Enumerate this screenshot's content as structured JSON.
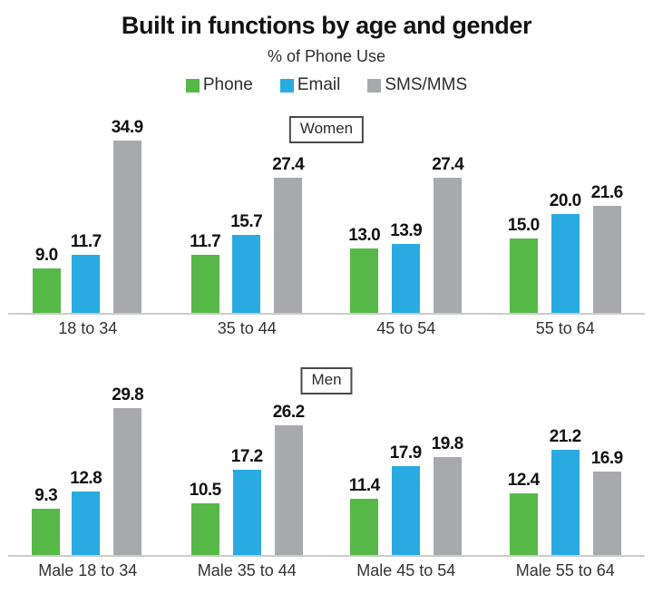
{
  "title": "Built in functions by age and gender",
  "subtitle": "% of Phone Use",
  "legend": [
    {
      "label": "Phone",
      "color": "#56b947",
      "icon": "green-square-swatch"
    },
    {
      "label": "Email",
      "color": "#29abe2",
      "icon": "blue-square-swatch"
    },
    {
      "label": "SMS/MMS",
      "color": "#a7a9ac",
      "icon": "gray-square-swatch"
    }
  ],
  "colors": {
    "phone_green": "#56b947",
    "email_blue": "#29abe2",
    "sms_gray": "#a7a9ac",
    "baseline_gray": "#cccccc",
    "text_black": "#111111"
  },
  "chart_data": {
    "type": "bar",
    "title": "Built in functions by age and gender",
    "subtitle": "% of Phone Use",
    "legend_position": "top-center",
    "grid": false,
    "value_labels": "one-decimal above each bar",
    "ylim": [
      0,
      36
    ],
    "panels": [
      {
        "panel_label": "Women",
        "categories": [
          "18 to 34",
          "35 to 44",
          "45 to 54",
          "55 to 64"
        ],
        "series": [
          {
            "name": "Phone",
            "color": "#56b947",
            "values": [
              9.0,
              11.7,
              13.0,
              15.0
            ]
          },
          {
            "name": "Email",
            "color": "#29abe2",
            "values": [
              11.7,
              15.7,
              13.9,
              20.0
            ]
          },
          {
            "name": "SMS/MMS",
            "color": "#a7a9ac",
            "values": [
              34.9,
              27.4,
              27.4,
              21.6
            ]
          }
        ]
      },
      {
        "panel_label": "Men",
        "categories": [
          "Male 18 to 34",
          "Male 35 to 44",
          "Male 45 to 54",
          "Male 55 to 64"
        ],
        "series": [
          {
            "name": "Phone",
            "color": "#56b947",
            "values": [
              9.3,
              10.5,
              11.4,
              12.4
            ]
          },
          {
            "name": "Email",
            "color": "#29abe2",
            "values": [
              12.8,
              17.2,
              17.9,
              21.2
            ]
          },
          {
            "name": "SMS/MMS",
            "color": "#a7a9ac",
            "values": [
              29.8,
              26.2,
              19.8,
              16.9
            ]
          }
        ]
      }
    ]
  }
}
